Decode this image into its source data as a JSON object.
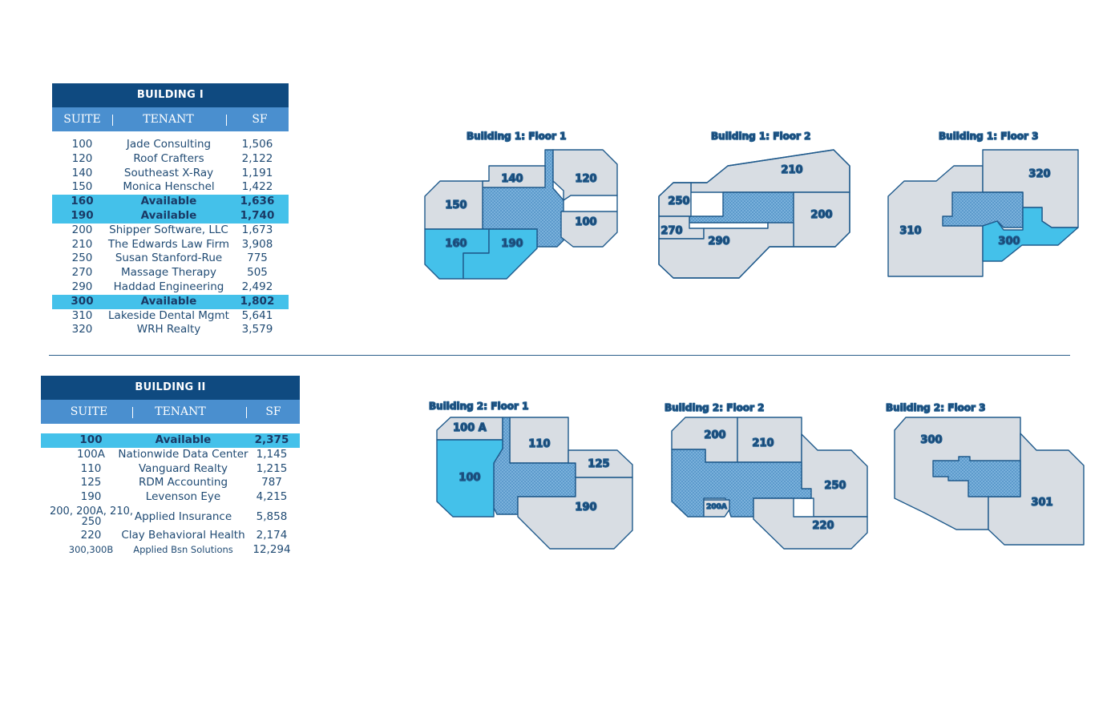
{
  "building1": {
    "title": "BUILDING I",
    "headers": {
      "suite": "SUITE",
      "tenant": "TENANT",
      "sf": "SF"
    },
    "rows": [
      {
        "suite": "100",
        "tenant": "Jade Consulting",
        "sf": "1,506",
        "available": false
      },
      {
        "suite": "120",
        "tenant": "Roof Crafters",
        "sf": "2,122",
        "available": false
      },
      {
        "suite": "140",
        "tenant": "Southeast X-Ray",
        "sf": "1,191",
        "available": false
      },
      {
        "suite": "150",
        "tenant": "Monica Henschel",
        "sf": "1,422",
        "available": false
      },
      {
        "suite": "160",
        "tenant": "Available",
        "sf": "1,636",
        "available": true
      },
      {
        "suite": "190",
        "tenant": "Available",
        "sf": "1,740",
        "available": true
      },
      {
        "suite": "200",
        "tenant": "Shipper Software, LLC",
        "sf": "1,673",
        "available": false
      },
      {
        "suite": "210",
        "tenant": "The Edwards Law Firm",
        "sf": "3,908",
        "available": false
      },
      {
        "suite": "250",
        "tenant": "Susan Stanford-Rue",
        "sf": "775",
        "available": false
      },
      {
        "suite": "270",
        "tenant": "Massage Therapy",
        "sf": "505",
        "available": false
      },
      {
        "suite": "290",
        "tenant": "Haddad Engineering",
        "sf": "2,492",
        "available": false
      },
      {
        "suite": "300",
        "tenant": "Available",
        "sf": "1,802",
        "available": true
      },
      {
        "suite": "310",
        "tenant": "Lakeside Dental Mgmt",
        "sf": "5,641",
        "available": false
      },
      {
        "suite": "320",
        "tenant": "WRH Realty",
        "sf": "3,579",
        "available": false
      }
    ]
  },
  "building2": {
    "title": "BUILDING II",
    "headers": {
      "suite": "SUITE",
      "tenant": "TENANT",
      "sf": "SF"
    },
    "rows": [
      {
        "suite": "100",
        "tenant": "Available",
        "sf": "2,375",
        "available": true
      },
      {
        "suite": "100A",
        "tenant": "Nationwide Data Center",
        "sf": "1,145",
        "available": false
      },
      {
        "suite": "110",
        "tenant": "Vanguard Realty",
        "sf": "1,215",
        "available": false
      },
      {
        "suite": "125",
        "tenant": "RDM Accounting",
        "sf": "787",
        "available": false
      },
      {
        "suite": "190",
        "tenant": "Levenson Eye",
        "sf": "4,215",
        "available": false
      },
      {
        "suite": "200, 200A, 210, 250",
        "tenant": "Applied Insurance",
        "sf": "5,858",
        "available": false
      },
      {
        "suite": "220",
        "tenant": "Clay Behavioral Health",
        "sf": "2,174",
        "available": false
      },
      {
        "suite": "300,300B",
        "tenant": "Applied Bsn Solutions",
        "sf": "12,294",
        "available": false
      }
    ]
  },
  "colors": {
    "dark": "#0f4a80",
    "header": "#4a8fcf",
    "available": "#44c1ea",
    "occupied": "#d8dde3",
    "common": "#6ea8d6",
    "outline": "#1f5a8c"
  },
  "floorplans": {
    "b1f1": {
      "title": "Building 1: Floor 1",
      "suites": [
        "140",
        "120",
        "150",
        "100",
        "160",
        "190"
      ]
    },
    "b1f2": {
      "title": "Building 1: Floor 2",
      "suites": [
        "210",
        "250",
        "200",
        "270",
        "290"
      ]
    },
    "b1f3": {
      "title": "Building 1: Floor 3",
      "suites": [
        "320",
        "310",
        "300"
      ]
    },
    "b2f1": {
      "title": "Building 2: Floor 1",
      "suites": [
        "100 A",
        "110",
        "125",
        "100",
        "190"
      ]
    },
    "b2f2": {
      "title": "Building 2: Floor 2",
      "suites": [
        "200",
        "210",
        "250",
        "200A",
        "220"
      ]
    },
    "b2f3": {
      "title": "Building 2: Floor 3",
      "suites": [
        "300",
        "301"
      ]
    }
  }
}
